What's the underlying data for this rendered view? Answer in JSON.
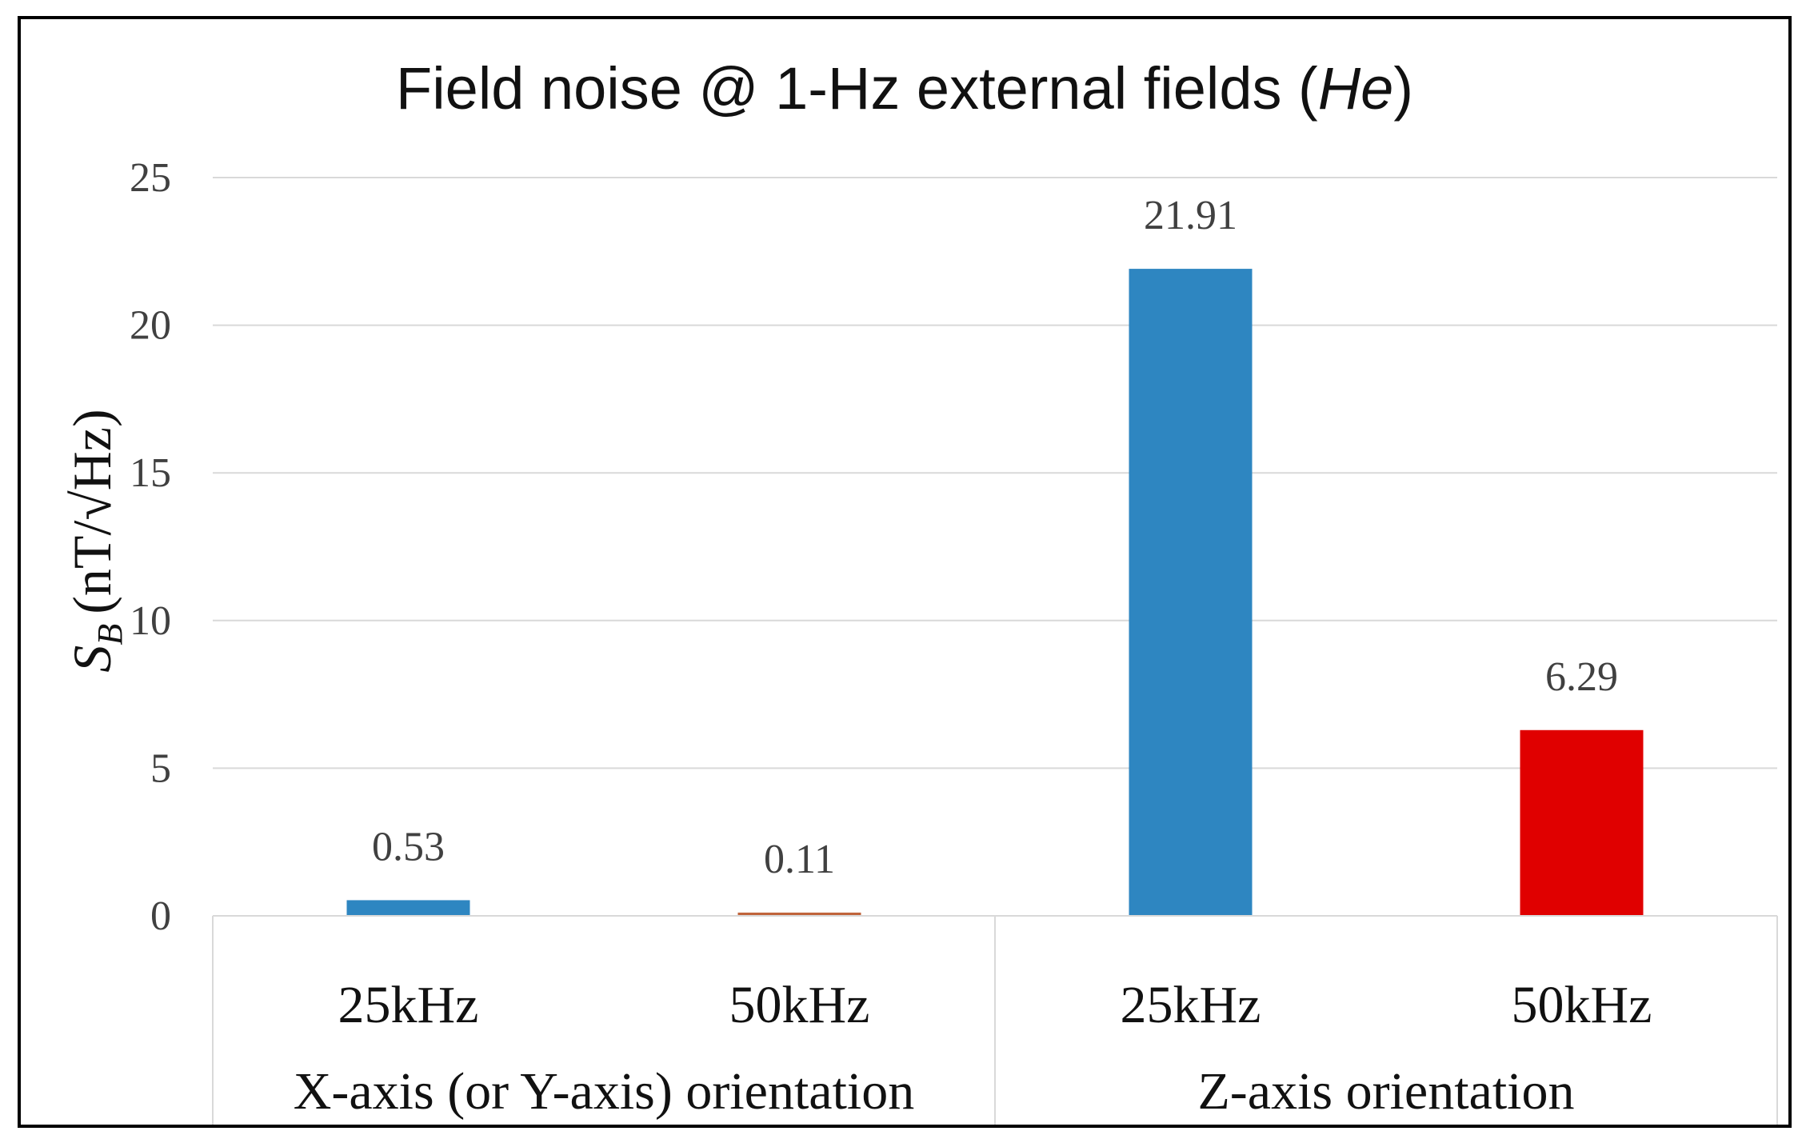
{
  "chart_data": {
    "type": "bar",
    "title": "Field noise @ 1-Hz external fields (",
    "title_italic": "He",
    "title_close": ")",
    "ylabel_symbol": "S",
    "ylabel_subscript": "B",
    "ylabel_unit": "(nT/√Hz)",
    "ylim": [
      0,
      25
    ],
    "yticks": [
      "0",
      "5",
      "10",
      "15",
      "20",
      "25"
    ],
    "grid": true,
    "categories": [
      "25kHz",
      "50kHz",
      "25kHz",
      "50kHz"
    ],
    "values": [
      0.53,
      0.11,
      21.91,
      6.29
    ],
    "value_labels": [
      "0.53",
      "0.11",
      "21.91",
      "6.29"
    ],
    "bar_colors": [
      "#2e86c1",
      "#c0643c",
      "#2e86c1",
      "#e00000"
    ],
    "groups": [
      {
        "label": "X-axis (or Y-axis) orientation",
        "categories": [
          "25kHz",
          "50kHz"
        ]
      },
      {
        "label": "Z-axis orientation",
        "categories": [
          "25kHz",
          "50kHz"
        ]
      }
    ]
  }
}
